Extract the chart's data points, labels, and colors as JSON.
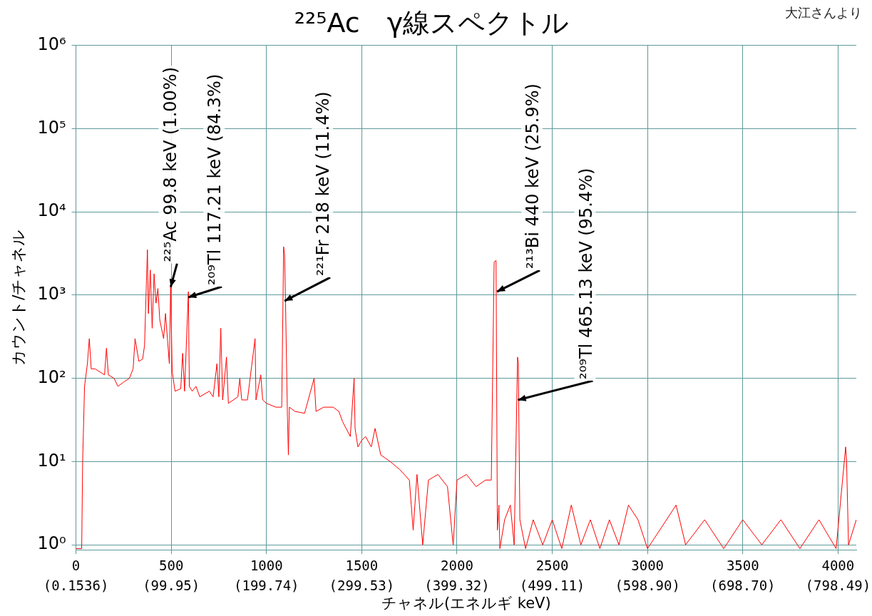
{
  "chart_data": {
    "type": "line",
    "title": "²²⁵Ac　γ線スペクトル",
    "xlabel": "チャネル(エネルギ keV)",
    "ylabel": "カウント/チャネル",
    "annotations": [
      "大江さんより",
      {
        "text": "²²⁵Ac 99.8 keV (1.00%)",
        "x": 497,
        "y": 1250
      },
      {
        "text": "²⁰⁹Tl 117.21 keV (84.3%)",
        "x": 590,
        "y": 940
      },
      {
        "text": "²²¹Fr 218 keV (11.4%)",
        "x": 1095,
        "y": 850
      },
      {
        "text": "²¹³Bi 440 keV (25.9%)",
        "x": 2210,
        "y": 1100
      },
      {
        "text": "²⁰⁹Tl 465.13 keV (95.4%)",
        "x": 2320,
        "y": 55
      }
    ],
    "log": "y",
    "grid": true,
    "legend": false,
    "marker": "none",
    "line_style": "solid",
    "xlim": [
      0,
      4096
    ],
    "ylim": [
      0.87,
      1000000
    ],
    "xticks": [
      0,
      500,
      1000,
      1500,
      2000,
      2500,
      3000,
      3500,
      4000
    ],
    "x2lim": [
      0.1536,
      817.65
    ],
    "x2ticks": [
      {
        "value": 0.1536,
        "label": "(0.1536)"
      },
      {
        "value": 99.95,
        "label": "(99.95)"
      },
      {
        "value": 199.74,
        "label": "(199.74)"
      },
      {
        "value": 299.53,
        "label": "(299.53)"
      },
      {
        "value": 399.32,
        "label": "(399.32)"
      },
      {
        "value": 499.11,
        "label": "(499.11)"
      },
      {
        "value": 598.9,
        "label": "(598.90)"
      },
      {
        "value": 698.7,
        "label": "(698.70)"
      },
      {
        "value": 798.49,
        "label": "(798.49)"
      }
    ],
    "yticks": [
      {
        "value": 1,
        "label": "10⁰"
      },
      {
        "value": 10,
        "label": "10¹"
      },
      {
        "value": 100,
        "label": "10²"
      },
      {
        "value": 1000,
        "label": "10³"
      },
      {
        "value": 10000,
        "label": "10⁴"
      },
      {
        "value": 100000,
        "label": "10⁵"
      },
      {
        "value": 1000000,
        "label": "10⁶"
      }
    ],
    "series": [
      {
        "color": "#ff0000",
        "x": [
          0,
          30,
          35,
          45,
          60,
          70,
          80,
          100,
          150,
          160,
          170,
          200,
          220,
          250,
          280,
          300,
          310,
          330,
          350,
          360,
          370,
          375,
          380,
          390,
          400,
          410,
          420,
          430,
          440,
          460,
          470,
          490,
          497,
          505,
          520,
          550,
          560,
          570,
          590,
          595,
          610,
          630,
          650,
          700,
          720,
          740,
          750,
          760,
          770,
          790,
          800,
          850,
          860,
          870,
          900,
          940,
          945,
          970,
          980,
          1000,
          1050,
          1080,
          1090,
          1095,
          1100,
          1110,
          1115,
          1120,
          1150,
          1200,
          1250,
          1260,
          1300,
          1350,
          1380,
          1400,
          1440,
          1460,
          1465,
          1480,
          1500,
          1520,
          1550,
          1570,
          1600,
          1650,
          1700,
          1750,
          1770,
          1790,
          1820,
          1850,
          1900,
          1950,
          1980,
          2000,
          2050,
          2100,
          2150,
          2180,
          2195,
          2205,
          2212,
          2220,
          2225,
          2250,
          2280,
          2300,
          2318,
          2322,
          2330,
          2360,
          2400,
          2450,
          2500,
          2550,
          2600,
          2650,
          2700,
          2750,
          2800,
          2850,
          2900,
          2950,
          3000,
          3100,
          3150,
          3200,
          3300,
          3400,
          3500,
          3600,
          3700,
          3800,
          3900,
          3990,
          4040,
          4045,
          4055,
          4096
        ],
        "values": [
          0.9,
          0.9,
          10,
          80,
          150,
          300,
          130,
          130,
          110,
          230,
          110,
          100,
          80,
          90,
          100,
          130,
          300,
          160,
          170,
          250,
          1500,
          3500,
          600,
          2000,
          400,
          1800,
          800,
          1200,
          500,
          300,
          600,
          150,
          1250,
          120,
          70,
          75,
          200,
          70,
          1100,
          80,
          70,
          80,
          60,
          70,
          60,
          150,
          60,
          400,
          55,
          180,
          50,
          60,
          100,
          55,
          55,
          300,
          55,
          110,
          55,
          50,
          45,
          45,
          3800,
          3000,
          800,
          35,
          12,
          45,
          40,
          38,
          100,
          40,
          45,
          45,
          40,
          30,
          20,
          100,
          25,
          15,
          18,
          20,
          15,
          25,
          12,
          10,
          8,
          6,
          1.5,
          7,
          1,
          6,
          7,
          5,
          1,
          6,
          7,
          5,
          6,
          6,
          2500,
          2600,
          1.5,
          3,
          0.9,
          2,
          3,
          1,
          180,
          150,
          2,
          0.9,
          2,
          1,
          2,
          0.9,
          3,
          1,
          2,
          0.9,
          2,
          1,
          3,
          2,
          0.9,
          2,
          3,
          1,
          2,
          0.9,
          2,
          1,
          2,
          0.9,
          2,
          0.9,
          15,
          10,
          1,
          2
        ]
      }
    ]
  }
}
